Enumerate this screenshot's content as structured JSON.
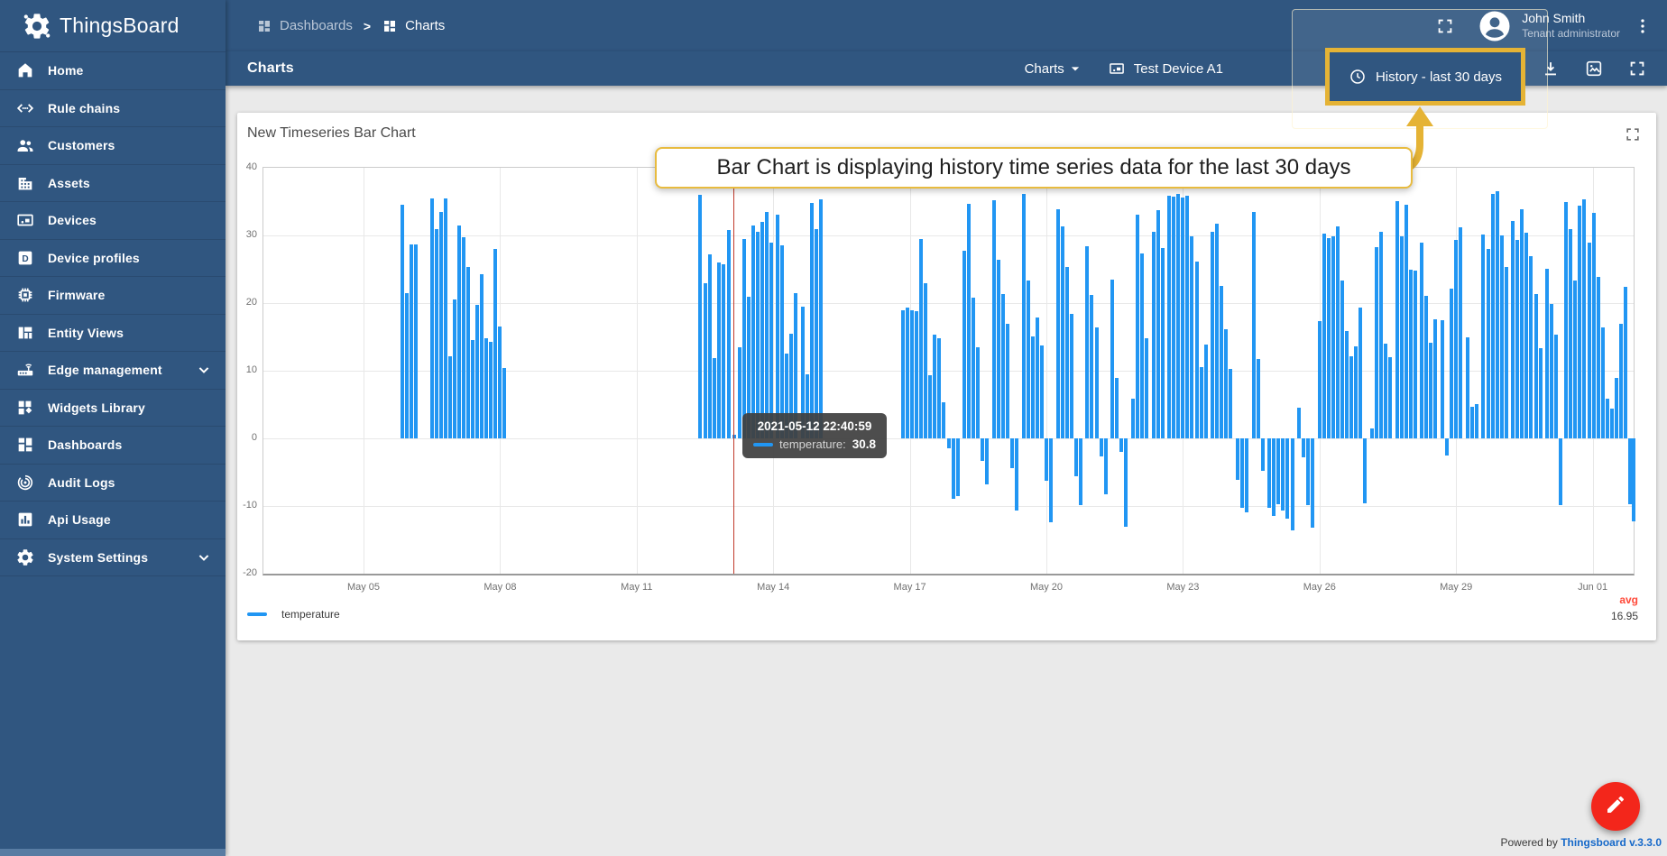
{
  "app": {
    "name": "ThingsBoard"
  },
  "header": {
    "breadcrumb": [
      {
        "label": "Dashboards"
      },
      {
        "label": "Charts"
      }
    ],
    "user": {
      "name": "John Smith",
      "role": "Tenant administrator"
    }
  },
  "toolbar": {
    "title": "Charts",
    "states_button": "Charts",
    "device_button": "Test Device A1",
    "timewindow_button": "History - last 30 days"
  },
  "sidebar": {
    "items": [
      {
        "label": "Home",
        "icon": "home-icon",
        "expandable": false
      },
      {
        "label": "Rule chains",
        "icon": "rule-chains-icon",
        "expandable": false
      },
      {
        "label": "Customers",
        "icon": "customers-icon",
        "expandable": false
      },
      {
        "label": "Assets",
        "icon": "assets-icon",
        "expandable": false
      },
      {
        "label": "Devices",
        "icon": "devices-icon",
        "expandable": false
      },
      {
        "label": "Device profiles",
        "icon": "device-profiles-icon",
        "expandable": false
      },
      {
        "label": "Firmware",
        "icon": "firmware-icon",
        "expandable": false
      },
      {
        "label": "Entity Views",
        "icon": "entity-views-icon",
        "expandable": false
      },
      {
        "label": "Edge management",
        "icon": "edge-icon",
        "expandable": true
      },
      {
        "label": "Widgets Library",
        "icon": "widgets-icon",
        "expandable": false
      },
      {
        "label": "Dashboards",
        "icon": "dashboards-icon",
        "expandable": false
      },
      {
        "label": "Audit Logs",
        "icon": "audit-logs-icon",
        "expandable": false
      },
      {
        "label": "Api Usage",
        "icon": "api-usage-icon",
        "expandable": false
      },
      {
        "label": "System Settings",
        "icon": "settings-icon",
        "expandable": true
      }
    ]
  },
  "widget": {
    "title": "New Timeseries Bar Chart"
  },
  "annotation": {
    "callout": "Bar Chart is displaying history time series data for the last 30 days"
  },
  "tooltip": {
    "timestamp": "2021-05-12 22:40:59",
    "series_label": "temperature:",
    "value": "30.8"
  },
  "legend": {
    "series_label": "temperature",
    "agg_header": "avg",
    "agg_value": "16.95"
  },
  "footer": {
    "powered_by": "Powered by",
    "version_link": "Thingsboard v.3.3.0"
  },
  "colors": {
    "primary": "#305680",
    "bar": "#2196f3",
    "highlight": "#e5b335",
    "crosshair": "#c0392b",
    "avg_label": "#ff4a3a",
    "fab": "#f3261b",
    "link": "#1669c9"
  },
  "chart_data": {
    "type": "bar",
    "title": "New Timeseries Bar Chart",
    "x_axis": {
      "range_days": [
        0,
        30.1
      ],
      "tick_labels": [
        "May 05",
        "May 08",
        "May 11",
        "May 14",
        "May 17",
        "May 20",
        "May 23",
        "May 26",
        "May 29",
        "Jun 01"
      ],
      "tick_days": [
        2.2,
        5.2,
        8.2,
        11.2,
        14.2,
        17.2,
        20.2,
        23.2,
        26.2,
        29.2
      ]
    },
    "y_axis": {
      "range": [
        -20,
        40
      ],
      "ticks": [
        40,
        30,
        20,
        10,
        0,
        -10,
        -20
      ]
    },
    "crosshair_day": 10.32,
    "avg": 16.95,
    "series": [
      {
        "name": "temperature",
        "color": "#2196f3",
        "points": [
          [
            3.05,
            34.5
          ],
          [
            3.15,
            21.5
          ],
          [
            3.25,
            28.7
          ],
          [
            3.35,
            28.7
          ],
          [
            3.7,
            35.5
          ],
          [
            3.8,
            31.0
          ],
          [
            3.9,
            33.5
          ],
          [
            4.0,
            35.5
          ],
          [
            4.1,
            12.2
          ],
          [
            4.2,
            20.5
          ],
          [
            4.3,
            31.5
          ],
          [
            4.4,
            29.8
          ],
          [
            4.5,
            25.3
          ],
          [
            4.6,
            14.6
          ],
          [
            4.7,
            19.7
          ],
          [
            4.8,
            24.3
          ],
          [
            4.9,
            14.8
          ],
          [
            5.0,
            14.3
          ],
          [
            5.1,
            28.0
          ],
          [
            5.2,
            16.6
          ],
          [
            5.3,
            10.4
          ],
          [
            9.6,
            36.0
          ],
          [
            9.7,
            23.0
          ],
          [
            9.8,
            27.2
          ],
          [
            9.9,
            11.9
          ],
          [
            10.0,
            26.0
          ],
          [
            10.1,
            25.8
          ],
          [
            10.22,
            30.8
          ],
          [
            10.34,
            0.6
          ],
          [
            10.46,
            13.5
          ],
          [
            10.56,
            29.5
          ],
          [
            10.66,
            21.0
          ],
          [
            10.76,
            31.5
          ],
          [
            10.86,
            30.5
          ],
          [
            10.96,
            32.0
          ],
          [
            11.06,
            33.5
          ],
          [
            11.16,
            29.0
          ],
          [
            11.3,
            33.1
          ],
          [
            11.4,
            28.5
          ],
          [
            11.5,
            12.5
          ],
          [
            11.6,
            15.5
          ],
          [
            11.7,
            21.5
          ],
          [
            11.85,
            19.5
          ],
          [
            11.95,
            9.5
          ],
          [
            12.05,
            34.8
          ],
          [
            12.15,
            31.0
          ],
          [
            12.25,
            35.3
          ],
          [
            14.05,
            19.0
          ],
          [
            14.15,
            19.3
          ],
          [
            14.25,
            19.0
          ],
          [
            14.35,
            18.8
          ],
          [
            14.45,
            29.5
          ],
          [
            14.55,
            23.0
          ],
          [
            14.65,
            9.3
          ],
          [
            14.75,
            15.3
          ],
          [
            14.85,
            14.8
          ],
          [
            14.95,
            5.3
          ],
          [
            15.05,
            -1.5
          ],
          [
            15.15,
            -8.9
          ],
          [
            15.25,
            -8.5
          ],
          [
            15.4,
            27.8
          ],
          [
            15.5,
            34.7
          ],
          [
            15.6,
            20.8
          ],
          [
            15.7,
            13.5
          ],
          [
            15.8,
            -3.3
          ],
          [
            15.9,
            -6.8
          ],
          [
            16.05,
            35.2
          ],
          [
            16.15,
            26.4
          ],
          [
            16.25,
            21.4
          ],
          [
            16.35,
            16.9
          ],
          [
            16.45,
            -4.4
          ],
          [
            16.55,
            -10.7
          ],
          [
            16.7,
            36.2
          ],
          [
            16.8,
            23.4
          ],
          [
            16.9,
            15.1
          ],
          [
            17.0,
            17.9
          ],
          [
            17.1,
            13.8
          ],
          [
            17.2,
            -6.2
          ],
          [
            17.3,
            -12.4
          ],
          [
            17.45,
            33.9
          ],
          [
            17.55,
            31.4
          ],
          [
            17.65,
            25.4
          ],
          [
            17.75,
            18.4
          ],
          [
            17.85,
            -5.6
          ],
          [
            17.95,
            -9.8
          ],
          [
            18.1,
            28.4
          ],
          [
            18.2,
            21.2
          ],
          [
            18.3,
            16.4
          ],
          [
            18.4,
            -2.7
          ],
          [
            18.5,
            -8.3
          ],
          [
            18.65,
            23.5
          ],
          [
            18.75,
            9.0
          ],
          [
            18.85,
            -2.0
          ],
          [
            18.95,
            -13.0
          ],
          [
            19.1,
            5.9
          ],
          [
            19.2,
            33.1
          ],
          [
            19.3,
            27.3
          ],
          [
            19.4,
            14.8
          ],
          [
            19.55,
            30.5
          ],
          [
            19.65,
            33.8
          ],
          [
            19.75,
            28.2
          ],
          [
            19.9,
            35.9
          ],
          [
            20.0,
            35.7
          ],
          [
            20.1,
            36.1
          ],
          [
            20.2,
            35.6
          ],
          [
            20.3,
            35.9
          ],
          [
            20.4,
            29.9
          ],
          [
            20.5,
            26.2
          ],
          [
            20.6,
            10.5
          ],
          [
            20.7,
            13.9
          ],
          [
            20.85,
            30.6
          ],
          [
            20.95,
            31.8
          ],
          [
            21.05,
            22.5
          ],
          [
            21.15,
            16.1
          ],
          [
            21.25,
            10.3
          ],
          [
            21.4,
            -6.1
          ],
          [
            21.5,
            -10.3
          ],
          [
            21.6,
            -10.9
          ],
          [
            21.75,
            33.5
          ],
          [
            21.85,
            11.8
          ],
          [
            21.95,
            -4.8
          ],
          [
            22.1,
            -10.2
          ],
          [
            22.2,
            -11.4
          ],
          [
            22.3,
            -9.7
          ],
          [
            22.4,
            -10.6
          ],
          [
            22.5,
            -11.8
          ],
          [
            22.6,
            -13.6
          ],
          [
            22.75,
            4.6
          ],
          [
            22.85,
            -2.8
          ],
          [
            22.95,
            -9.9
          ],
          [
            23.05,
            -13.2
          ],
          [
            23.2,
            17.4
          ],
          [
            23.3,
            30.3
          ],
          [
            23.4,
            29.6
          ],
          [
            23.5,
            29.9
          ],
          [
            23.6,
            31.4
          ],
          [
            23.7,
            23.3
          ],
          [
            23.8,
            15.9
          ],
          [
            23.9,
            12.1
          ],
          [
            24.0,
            13.6
          ],
          [
            24.1,
            19.4
          ],
          [
            24.2,
            -9.6
          ],
          [
            24.35,
            1.5
          ],
          [
            24.45,
            28.3
          ],
          [
            24.55,
            30.5
          ],
          [
            24.65,
            14.0
          ],
          [
            24.75,
            12.0
          ],
          [
            24.9,
            35.1
          ],
          [
            25.0,
            29.9
          ],
          [
            25.1,
            34.6
          ],
          [
            25.2,
            24.9
          ],
          [
            25.3,
            24.8
          ],
          [
            25.45,
            28.9
          ],
          [
            25.55,
            21.1
          ],
          [
            25.65,
            14.2
          ],
          [
            25.75,
            17.6
          ],
          [
            25.9,
            17.5
          ],
          [
            26.0,
            -2.5
          ],
          [
            26.1,
            22.2
          ],
          [
            26.2,
            29.4
          ],
          [
            26.3,
            31.2
          ],
          [
            26.45,
            14.9
          ],
          [
            26.55,
            4.7
          ],
          [
            26.65,
            5.1
          ],
          [
            26.8,
            30.1
          ],
          [
            26.9,
            28.0
          ],
          [
            27.0,
            36.1
          ],
          [
            27.1,
            36.5
          ],
          [
            27.2,
            30.0
          ],
          [
            27.3,
            25.4
          ],
          [
            27.45,
            32.1
          ],
          [
            27.55,
            29.4
          ],
          [
            27.65,
            33.9
          ],
          [
            27.75,
            30.4
          ],
          [
            27.85,
            26.9
          ],
          [
            27.95,
            21.3
          ],
          [
            28.05,
            13.4
          ],
          [
            28.2,
            25.1
          ],
          [
            28.3,
            19.9
          ],
          [
            28.4,
            15.4
          ],
          [
            28.5,
            -9.9
          ],
          [
            28.62,
            34.9
          ],
          [
            28.72,
            30.9
          ],
          [
            28.82,
            23.4
          ],
          [
            28.92,
            34.4
          ],
          [
            29.02,
            35.4
          ],
          [
            29.12,
            28.9
          ],
          [
            29.22,
            33.4
          ],
          [
            29.32,
            23.9
          ],
          [
            29.42,
            16.4
          ],
          [
            29.52,
            5.9
          ],
          [
            29.62,
            4.4
          ],
          [
            29.72,
            8.9
          ],
          [
            29.82,
            16.9
          ],
          [
            29.92,
            22.4
          ],
          [
            30.02,
            -9.7
          ],
          [
            30.1,
            -12.3
          ]
        ]
      }
    ]
  }
}
